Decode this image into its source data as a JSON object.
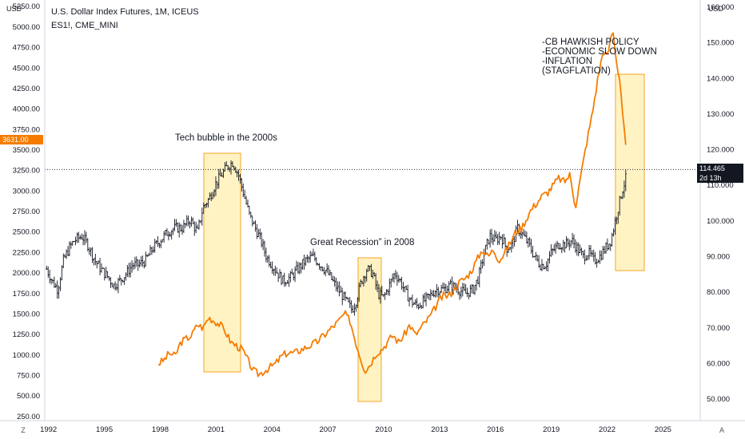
{
  "header": {
    "title": "U.S. Dollar Index Futures, 1M, ICEUS",
    "subtitle": "ES1!, CME_MINI"
  },
  "left_axis": {
    "unit": "USD"
  },
  "right_axis": {
    "unit": "USD"
  },
  "bottom_buttons": {
    "left": "Z",
    "right": "A"
  },
  "left_price_tag": {
    "value": "3631.00",
    "color": "#f57c00"
  },
  "right_price_tag": {
    "value": "114.465",
    "countdown": "2d 13h",
    "color": "#131722"
  },
  "colors": {
    "es_bars": "#131722",
    "dxy_line": "#f57c00",
    "box_fill": "#fff3c4",
    "box_stroke": "#f5a623"
  },
  "annotations": {
    "tech": "Tech bubble in the 2000s",
    "recession": "Great Recession” in 2008",
    "stagflation": [
      "-CB HAWKISH POLICY",
      "-ECONOMIC SLOW DOWN",
      "-INFLATION",
      "(STAGFLATION)"
    ]
  },
  "chart_data": {
    "type": "line",
    "x_ticks": [
      "1992",
      "1995",
      "1998",
      "2001",
      "2004",
      "2007",
      "2010",
      "2013",
      "2016",
      "2019",
      "2022",
      "2025"
    ],
    "left_ticks": [
      "250.00",
      "500.00",
      "750.00",
      "1000.00",
      "1250.00",
      "1500.00",
      "1750.00",
      "2000.00",
      "2250.00",
      "2500.00",
      "2750.00",
      "3000.00",
      "3250.00",
      "3500.00",
      "3750.00",
      "4000.00",
      "4250.00",
      "4500.00",
      "4750.00",
      "5000.00",
      "5250.00"
    ],
    "right_ticks": [
      "50.000",
      "60.000",
      "70.000",
      "80.000",
      "90.000",
      "100.000",
      "110.000",
      "120.000",
      "130.000",
      "140.000",
      "150.000",
      "160.000"
    ],
    "left_ylim": [
      200,
      5330
    ],
    "right_ylim": [
      44,
      162
    ],
    "xlim": [
      1991.8,
      2027.0
    ],
    "series": [
      {
        "axis": "left",
        "style": "ohlc",
        "points": [
          [
            1991.9,
            2050
          ],
          [
            1992.2,
            1900
          ],
          [
            1992.5,
            1800
          ],
          [
            1992.8,
            2150
          ],
          [
            1993.1,
            2300
          ],
          [
            1993.4,
            2400
          ],
          [
            1993.8,
            2450
          ],
          [
            1994.1,
            2350
          ],
          [
            1994.5,
            2150
          ],
          [
            1994.8,
            2050
          ],
          [
            1995.2,
            1950
          ],
          [
            1995.5,
            1850
          ],
          [
            1995.8,
            1900
          ],
          [
            1996.2,
            2000
          ],
          [
            1996.5,
            2100
          ],
          [
            1996.8,
            2100
          ],
          [
            1997.2,
            2150
          ],
          [
            1997.6,
            2300
          ],
          [
            1998.0,
            2400
          ],
          [
            1998.4,
            2500
          ],
          [
            1998.8,
            2550
          ],
          [
            1999.2,
            2550
          ],
          [
            1999.6,
            2650
          ],
          [
            2000.0,
            2500
          ],
          [
            2000.3,
            2800
          ],
          [
            2000.6,
            2900
          ],
          [
            2001.0,
            3100
          ],
          [
            2001.3,
            3200
          ],
          [
            2001.6,
            3300
          ],
          [
            2001.9,
            3350
          ],
          [
            2002.2,
            3200
          ],
          [
            2002.5,
            2950
          ],
          [
            2002.8,
            2700
          ],
          [
            2003.1,
            2550
          ],
          [
            2003.4,
            2400
          ],
          [
            2003.7,
            2200
          ],
          [
            2004.0,
            2100
          ],
          [
            2004.3,
            2000
          ],
          [
            2004.6,
            1900
          ],
          [
            2005.0,
            1950
          ],
          [
            2005.4,
            2050
          ],
          [
            2005.8,
            2150
          ],
          [
            2006.2,
            2200
          ],
          [
            2006.6,
            2100
          ],
          [
            2007.0,
            2000
          ],
          [
            2007.4,
            1850
          ],
          [
            2007.7,
            1750
          ],
          [
            2008.0,
            1650
          ],
          [
            2008.3,
            1550
          ],
          [
            2008.5,
            1650
          ],
          [
            2008.8,
            1900
          ],
          [
            2009.1,
            2050
          ],
          [
            2009.4,
            2000
          ],
          [
            2009.7,
            1750
          ],
          [
            2010.0,
            1700
          ],
          [
            2010.3,
            1850
          ],
          [
            2010.6,
            2000
          ],
          [
            2010.9,
            1900
          ],
          [
            2011.2,
            1750
          ],
          [
            2011.5,
            1650
          ],
          [
            2011.8,
            1600
          ],
          [
            2012.1,
            1650
          ],
          [
            2012.4,
            1700
          ],
          [
            2012.8,
            1800
          ],
          [
            2013.2,
            1800
          ],
          [
            2013.6,
            1850
          ],
          [
            2014.0,
            1800
          ],
          [
            2014.4,
            1750
          ],
          [
            2014.8,
            1800
          ],
          [
            2015.1,
            1950
          ],
          [
            2015.4,
            2250
          ],
          [
            2015.7,
            2450
          ],
          [
            2016.0,
            2400
          ],
          [
            2016.3,
            2450
          ],
          [
            2016.6,
            2300
          ],
          [
            2016.9,
            2350
          ],
          [
            2017.2,
            2550
          ],
          [
            2017.5,
            2450
          ],
          [
            2017.8,
            2350
          ],
          [
            2018.1,
            2200
          ],
          [
            2018.4,
            2100
          ],
          [
            2018.7,
            2100
          ],
          [
            2019.0,
            2250
          ],
          [
            2019.4,
            2350
          ],
          [
            2019.8,
            2350
          ],
          [
            2020.1,
            2400
          ],
          [
            2020.4,
            2300
          ],
          [
            2020.7,
            2200
          ],
          [
            2021.0,
            2250
          ],
          [
            2021.3,
            2150
          ],
          [
            2021.6,
            2200
          ],
          [
            2021.9,
            2300
          ],
          [
            2022.2,
            2400
          ],
          [
            2022.5,
            2700
          ],
          [
            2022.8,
            3000
          ],
          [
            2023.0,
            3150
          ]
        ]
      },
      {
        "axis": "right",
        "style": "line",
        "points": [
          [
            1997.9,
            60
          ],
          [
            1998.2,
            61
          ],
          [
            1998.5,
            63
          ],
          [
            1998.8,
            62
          ],
          [
            1999.1,
            66
          ],
          [
            1999.4,
            67
          ],
          [
            1999.7,
            68
          ],
          [
            2000.0,
            71
          ],
          [
            2000.3,
            70
          ],
          [
            2000.6,
            73
          ],
          [
            2000.9,
            72
          ],
          [
            2001.2,
            71
          ],
          [
            2001.5,
            69
          ],
          [
            2001.8,
            66
          ],
          [
            2002.1,
            65
          ],
          [
            2002.4,
            64
          ],
          [
            2002.7,
            61
          ],
          [
            2003.0,
            58
          ],
          [
            2003.3,
            57
          ],
          [
            2003.6,
            58
          ],
          [
            2003.9,
            59
          ],
          [
            2004.2,
            60
          ],
          [
            2004.5,
            62
          ],
          [
            2004.8,
            63
          ],
          [
            2005.2,
            63
          ],
          [
            2005.6,
            64
          ],
          [
            2006.0,
            65
          ],
          [
            2006.4,
            66
          ],
          [
            2006.8,
            68
          ],
          [
            2007.2,
            70
          ],
          [
            2007.6,
            72
          ],
          [
            2007.9,
            74
          ],
          [
            2008.2,
            72
          ],
          [
            2008.5,
            66
          ],
          [
            2008.8,
            61
          ],
          [
            2009.0,
            58
          ],
          [
            2009.3,
            60
          ],
          [
            2009.6,
            63
          ],
          [
            2009.9,
            64
          ],
          [
            2010.2,
            66
          ],
          [
            2010.5,
            68
          ],
          [
            2010.8,
            66
          ],
          [
            2011.1,
            68
          ],
          [
            2011.4,
            71
          ],
          [
            2011.7,
            68
          ],
          [
            2012.0,
            70
          ],
          [
            2012.3,
            72
          ],
          [
            2012.6,
            74
          ],
          [
            2012.9,
            77
          ],
          [
            2013.2,
            79
          ],
          [
            2013.5,
            79
          ],
          [
            2013.8,
            81
          ],
          [
            2014.1,
            83
          ],
          [
            2014.4,
            84
          ],
          [
            2014.7,
            86
          ],
          [
            2015.0,
            89
          ],
          [
            2015.3,
            92
          ],
          [
            2015.6,
            90
          ],
          [
            2015.9,
            92
          ],
          [
            2016.2,
            89
          ],
          [
            2016.5,
            91
          ],
          [
            2016.8,
            94
          ],
          [
            2017.1,
            97
          ],
          [
            2017.4,
            98
          ],
          [
            2017.7,
            101
          ],
          [
            2017.9,
            103
          ],
          [
            2018.2,
            105
          ],
          [
            2018.5,
            107
          ],
          [
            2018.8,
            108
          ],
          [
            2019.1,
            110
          ],
          [
            2019.4,
            112
          ],
          [
            2019.7,
            111
          ],
          [
            2020.0,
            113
          ],
          [
            2020.3,
            104
          ],
          [
            2020.6,
            113
          ],
          [
            2020.9,
            122
          ],
          [
            2021.2,
            130
          ],
          [
            2021.5,
            140
          ],
          [
            2021.8,
            148
          ],
          [
            2022.0,
            146
          ],
          [
            2022.3,
            154
          ],
          [
            2022.5,
            145
          ],
          [
            2022.7,
            139
          ],
          [
            2022.9,
            126
          ],
          [
            2023.0,
            121
          ]
        ]
      }
    ],
    "current_left": 3631.0,
    "current_right": 114.465,
    "grid": false
  }
}
